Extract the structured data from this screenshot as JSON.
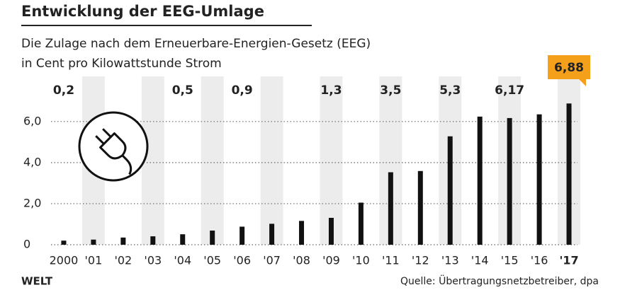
{
  "chart_data": {
    "type": "bar",
    "title": "Entwicklung der EEG-Umlage",
    "subtitle": [
      "Die Zulage nach dem Erneuerbare-Energien-Gesetz (EEG)",
      "in Cent pro Kilowattstunde Strom"
    ],
    "categories": [
      "2000",
      "'01",
      "'02",
      "'03",
      "'04",
      "'05",
      "'06",
      "'07",
      "'08",
      "'09",
      "'10",
      "'11",
      "'12",
      "'13",
      "'14",
      "'15",
      "'16",
      "'17"
    ],
    "values": [
      0.2,
      0.25,
      0.35,
      0.41,
      0.51,
      0.69,
      0.88,
      1.02,
      1.16,
      1.31,
      2.05,
      3.53,
      3.59,
      5.28,
      6.24,
      6.17,
      6.35,
      6.88
    ],
    "value_labels": [
      "0,2",
      null,
      null,
      null,
      "0,5",
      null,
      "0,9",
      null,
      null,
      "1,3",
      null,
      "3,5",
      null,
      "5,3",
      null,
      "6,17",
      null,
      "6,88"
    ],
    "color": "#111111",
    "ylim": [
      0,
      7.2
    ],
    "yticks": [
      0,
      {
        "value": 2,
        "label": "2,0"
      },
      {
        "value": 4,
        "label": "4,0"
      },
      {
        "value": 6,
        "label": "6,0"
      }
    ],
    "grid": true,
    "brand": "WELT",
    "source": "Quelle: Übertragungsnetzbetreiber, dpa"
  }
}
